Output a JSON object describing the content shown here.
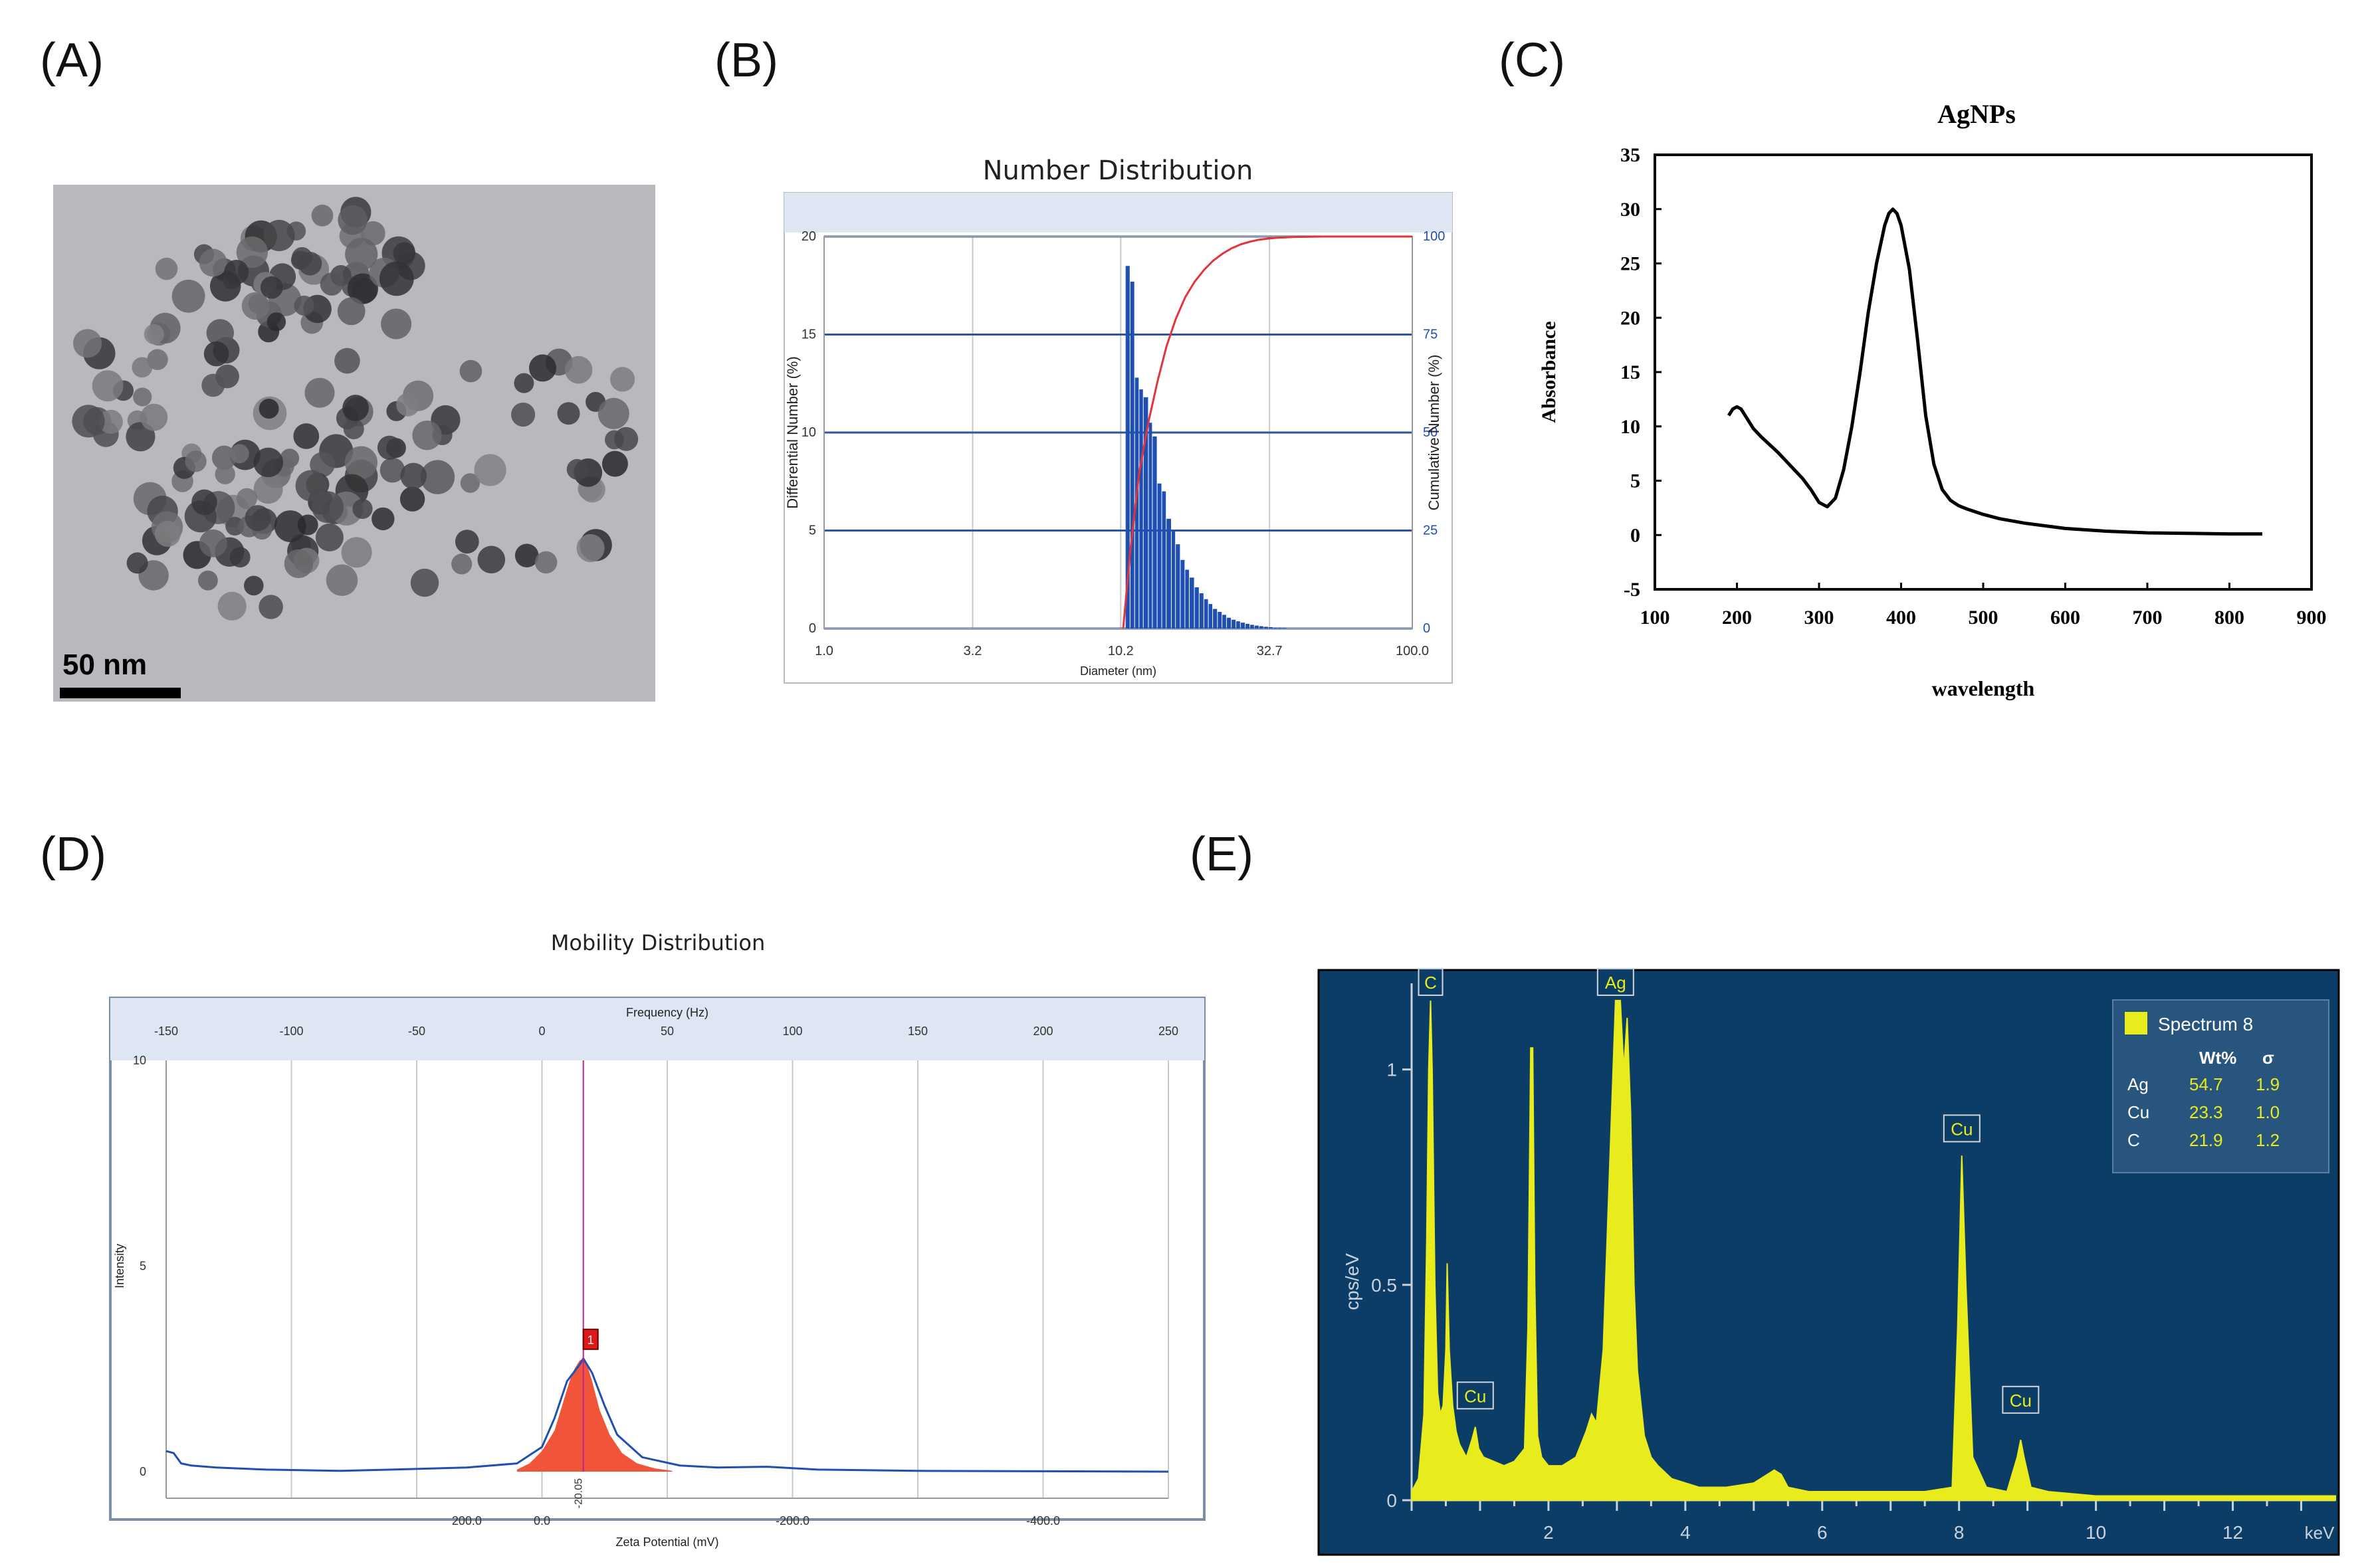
{
  "panel_labels": [
    "(A)",
    "(B)",
    "(C)",
    "(D)",
    "(E)"
  ],
  "tem": {
    "scale_bar_label": "50 nm"
  },
  "chart_data": [
    {
      "id": "B",
      "type": "bar",
      "title": "Number Distribution",
      "xlabel": "Diameter (nm)",
      "ylabel": "Differential Number (%)",
      "y2label": "Cumulative Number (%)",
      "x_scale": "log",
      "xlim": [
        1.0,
        100.0
      ],
      "ylim": [
        0,
        20
      ],
      "y2lim": [
        0,
        100
      ],
      "x_ticks": [
        "1.0",
        "3.2",
        "10.2",
        "32.7",
        "100.0"
      ],
      "y_ticks": [
        "0",
        "5",
        "10",
        "15",
        "20"
      ],
      "y2_ticks": [
        "0",
        "25",
        "50",
        "75",
        "100"
      ],
      "grid": true,
      "bars": {
        "x": [
          10.6,
          11.0,
          11.4,
          11.8,
          12.2,
          12.7,
          13.1,
          13.6,
          14.1,
          14.6,
          15.2,
          15.7,
          16.3,
          16.9,
          17.5,
          18.2,
          18.9,
          19.6,
          20.3,
          21.0,
          21.8,
          22.6,
          23.4,
          24.3,
          25.2,
          26.1,
          27.1,
          28.1,
          29.1,
          30.2,
          31.3,
          32.5,
          33.7,
          34.9,
          36.2
        ],
        "values": [
          18.5,
          17.7,
          12.8,
          12.2,
          11.8,
          10.5,
          9.8,
          7.4,
          7.0,
          5.6,
          5.0,
          4.3,
          3.5,
          3.0,
          2.6,
          2.1,
          1.8,
          1.5,
          1.25,
          1.0,
          0.85,
          0.7,
          0.55,
          0.45,
          0.37,
          0.3,
          0.24,
          0.19,
          0.15,
          0.12,
          0.09,
          0.07,
          0.05,
          0.04,
          0.03
        ]
      },
      "cumulative": {
        "x": [
          10.4,
          11.0,
          11.8,
          12.7,
          13.6,
          14.6,
          15.7,
          16.9,
          18.2,
          19.6,
          21.0,
          22.6,
          24.3,
          26.1,
          28.1,
          30.2,
          32.5,
          34.9,
          40.0,
          50.0,
          100.0
        ],
        "values": [
          0,
          20,
          40,
          53,
          63,
          72,
          79,
          84.5,
          88.5,
          91.5,
          93.8,
          95.6,
          97.0,
          98.0,
          98.7,
          99.2,
          99.5,
          99.7,
          99.9,
          100,
          100
        ]
      },
      "colors": {
        "bars": "#1f4fb3",
        "cumulative": "#e3343a",
        "grid": "#2a55a3"
      }
    },
    {
      "id": "C",
      "type": "line",
      "title": "AgNPs",
      "xlabel": "wavelength",
      "ylabel": "Absorbance",
      "xlim": [
        100,
        900
      ],
      "ylim": [
        -5,
        35
      ],
      "x_ticks": [
        100,
        200,
        300,
        400,
        500,
        600,
        700,
        800,
        900
      ],
      "y_ticks": [
        -5,
        0,
        5,
        10,
        15,
        20,
        25,
        30,
        35
      ],
      "grid": false,
      "series": [
        {
          "x": [
            190,
            195,
            200,
            205,
            210,
            220,
            230,
            240,
            250,
            260,
            270,
            280,
            290,
            300,
            310,
            320,
            330,
            340,
            350,
            360,
            370,
            380,
            385,
            390,
            395,
            400,
            410,
            420,
            430,
            440,
            450,
            460,
            470,
            480,
            500,
            520,
            550,
            600,
            650,
            700,
            750,
            800,
            840
          ],
          "y": [
            11.0,
            11.6,
            11.8,
            11.6,
            11.0,
            9.8,
            9.0,
            8.3,
            7.6,
            6.8,
            6.0,
            5.2,
            4.2,
            3.0,
            2.6,
            3.4,
            6.0,
            10.0,
            15.0,
            20.5,
            25.0,
            28.5,
            29.6,
            30.0,
            29.6,
            28.5,
            24.5,
            18.0,
            11.0,
            6.5,
            4.2,
            3.2,
            2.7,
            2.4,
            1.9,
            1.5,
            1.1,
            0.6,
            0.35,
            0.2,
            0.15,
            0.1,
            0.1
          ]
        }
      ],
      "colors": {
        "line": "#000000"
      }
    },
    {
      "id": "D",
      "type": "area",
      "title": "Mobility Distribution",
      "xlabel": "Zeta Potential (mV)",
      "x2label": "Frequency (Hz)",
      "ylabel": "Intensity",
      "ylim": [
        0,
        10
      ],
      "xlim_freq": [
        -150,
        250
      ],
      "x2_ticks": [
        -150,
        -100,
        -50,
        0,
        50,
        100,
        150,
        200,
        250
      ],
      "x_ticks": [
        "200.0",
        "0.0",
        "-200.0",
        "-400.0"
      ],
      "y_ticks": [
        "0",
        "5",
        "10"
      ],
      "peak_label": "-20.05",
      "peak_marker": "1",
      "peak_freq": 16.5,
      "grid": true,
      "peak_area": {
        "freq": [
          -10,
          -5,
          0,
          5,
          8,
          11,
          13,
          15,
          16.5,
          18,
          20,
          23,
          27,
          32,
          38,
          45,
          52
        ],
        "values": [
          0.05,
          0.2,
          0.5,
          1.0,
          1.6,
          2.2,
          2.5,
          2.7,
          2.75,
          2.6,
          2.2,
          1.5,
          0.9,
          0.45,
          0.2,
          0.08,
          0.02
        ]
      },
      "baseline": {
        "freq": [
          -150,
          -147,
          -144,
          -140,
          -130,
          -110,
          -80,
          -60,
          -30,
          -10,
          0,
          5,
          10,
          15,
          16.5,
          20,
          25,
          30,
          40,
          55,
          70,
          90,
          110,
          150,
          200,
          250
        ],
        "values": [
          0.5,
          0.45,
          0.2,
          0.15,
          0.1,
          0.05,
          0.02,
          0.05,
          0.1,
          0.2,
          0.6,
          1.3,
          2.2,
          2.6,
          2.75,
          2.4,
          1.6,
          0.9,
          0.35,
          0.15,
          0.1,
          0.12,
          0.05,
          0.02,
          0.01,
          0.0
        ]
      },
      "colors": {
        "area": "#f0553a",
        "line": "#1f4fb3",
        "peak_line": "#c2228c"
      }
    },
    {
      "id": "E",
      "type": "line",
      "title": "",
      "xlabel": "keV",
      "ylabel": "cps/eV",
      "xlim": [
        0,
        13.5
      ],
      "ylim": [
        0,
        1.2
      ],
      "x_ticks": [
        2,
        4,
        6,
        8,
        10,
        12
      ],
      "y_ticks": [
        "0",
        "0.5",
        "1"
      ],
      "legend": {
        "name": "Spectrum 8",
        "headers": [
          "Wt%",
          "σ"
        ],
        "rows": [
          {
            "el": "Ag",
            "wt": "54.7",
            "sigma": "1.9"
          },
          {
            "el": "Cu",
            "wt": "23.3",
            "sigma": "1.0"
          },
          {
            "el": "C",
            "wt": "21.9",
            "sigma": "1.2"
          }
        ],
        "position": "top-right"
      },
      "peak_labels": [
        {
          "label": "C",
          "kev": 0.277,
          "cps": 1.16
        },
        {
          "label": "Cu",
          "kev": 0.93,
          "cps": 0.2
        },
        {
          "label": "Ag",
          "kev": 2.98,
          "cps": 1.16
        },
        {
          "label": "Cu",
          "kev": 8.04,
          "cps": 0.82
        },
        {
          "label": "Cu",
          "kev": 8.9,
          "cps": 0.19
        }
      ],
      "series": [
        {
          "x": [
            0.0,
            0.1,
            0.18,
            0.22,
            0.25,
            0.277,
            0.3,
            0.34,
            0.38,
            0.42,
            0.46,
            0.5,
            0.52,
            0.55,
            0.6,
            0.65,
            0.7,
            0.8,
            0.88,
            0.93,
            0.98,
            1.05,
            1.2,
            1.35,
            1.5,
            1.65,
            1.7,
            1.74,
            1.77,
            1.8,
            1.84,
            1.9,
            2.0,
            2.2,
            2.4,
            2.55,
            2.63,
            2.7,
            2.8,
            2.9,
            2.98,
            3.05,
            3.1,
            3.15,
            3.2,
            3.25,
            3.3,
            3.4,
            3.5,
            3.6,
            3.8,
            4.2,
            4.6,
            5.0,
            5.3,
            5.4,
            5.5,
            5.8,
            6.5,
            7.0,
            7.5,
            7.9,
            7.98,
            8.04,
            8.1,
            8.2,
            8.4,
            8.7,
            8.85,
            8.9,
            8.95,
            9.05,
            9.3,
            10.0,
            11.0,
            12.0,
            13.0,
            13.5
          ],
          "y": [
            0.02,
            0.05,
            0.2,
            0.6,
            1.0,
            1.16,
            1.0,
            0.5,
            0.25,
            0.2,
            0.22,
            0.35,
            0.55,
            0.35,
            0.22,
            0.16,
            0.13,
            0.1,
            0.14,
            0.17,
            0.12,
            0.1,
            0.09,
            0.08,
            0.09,
            0.12,
            0.4,
            1.05,
            1.05,
            0.5,
            0.15,
            0.1,
            0.08,
            0.08,
            0.1,
            0.16,
            0.2,
            0.18,
            0.35,
            0.8,
            1.16,
            1.16,
            1.0,
            1.12,
            0.9,
            0.5,
            0.3,
            0.15,
            0.1,
            0.08,
            0.05,
            0.03,
            0.03,
            0.04,
            0.07,
            0.06,
            0.03,
            0.02,
            0.02,
            0.02,
            0.02,
            0.03,
            0.4,
            0.8,
            0.5,
            0.1,
            0.03,
            0.02,
            0.1,
            0.14,
            0.1,
            0.03,
            0.02,
            0.01,
            0.01,
            0.01,
            0.01,
            0.01
          ]
        }
      ],
      "colors": {
        "background": "#0c3d66",
        "fill": "#e8ec1c",
        "text": "#e8ec1c",
        "axis": "#c8d2dc"
      }
    }
  ]
}
